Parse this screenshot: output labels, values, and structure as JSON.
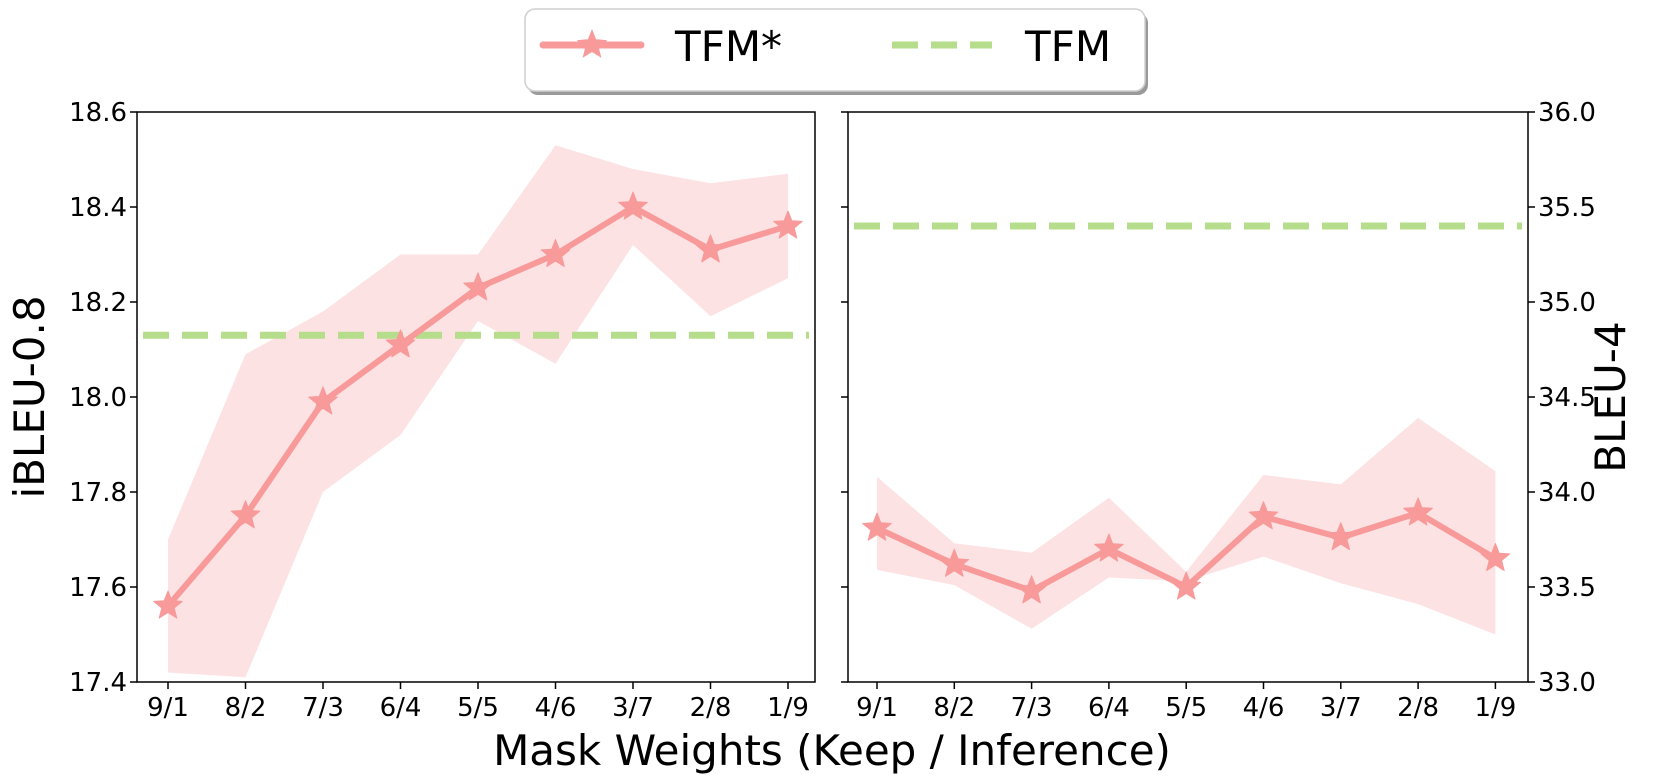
{
  "chart_data": [
    {
      "type": "line",
      "panel": "left",
      "categories": [
        "9/1",
        "8/2",
        "7/3",
        "6/4",
        "5/5",
        "4/6",
        "3/7",
        "2/8",
        "1/9"
      ],
      "ylabel": "iBLEU-0.8",
      "ylim": [
        17.4,
        18.6
      ],
      "yticks": [
        "17.4",
        "17.6",
        "17.8",
        "18.0",
        "18.2",
        "18.4",
        "18.6"
      ],
      "series": [
        {
          "name": "TFM*",
          "values": [
            17.56,
            17.75,
            17.99,
            18.11,
            18.23,
            18.3,
            18.4,
            18.31,
            18.36
          ],
          "upper": [
            17.7,
            18.09,
            18.18,
            18.3,
            18.3,
            18.53,
            18.48,
            18.45,
            18.47
          ],
          "lower": [
            17.42,
            17.41,
            17.8,
            17.92,
            18.16,
            18.07,
            18.32,
            18.17,
            18.25
          ]
        },
        {
          "name": "TFM",
          "baseline": 18.13
        }
      ]
    },
    {
      "type": "line",
      "panel": "right",
      "categories": [
        "9/1",
        "8/2",
        "7/3",
        "6/4",
        "5/5",
        "4/6",
        "3/7",
        "2/8",
        "1/9"
      ],
      "ylabel": "BLEU-4",
      "ylim": [
        33.0,
        36.0
      ],
      "yticks": [
        "33.0",
        "33.5",
        "34.0",
        "34.5",
        "35.0",
        "35.5",
        "36.0"
      ],
      "series": [
        {
          "name": "TFM*",
          "values": [
            33.81,
            33.62,
            33.48,
            33.7,
            33.5,
            33.87,
            33.76,
            33.89,
            33.65
          ],
          "upper": [
            34.08,
            33.73,
            33.68,
            33.97,
            33.58,
            34.09,
            34.04,
            34.39,
            34.11
          ],
          "lower": [
            33.59,
            33.51,
            33.28,
            33.55,
            33.53,
            33.66,
            33.52,
            33.41,
            33.25
          ]
        },
        {
          "name": "TFM",
          "baseline": 35.4
        }
      ]
    }
  ],
  "xlabel": "Mask Weights (Keep / Inference)",
  "legend": {
    "placement": "top-center",
    "entries": [
      "TFM*",
      "TFM"
    ]
  },
  "colors": {
    "tfm_star": "#f89a9a",
    "tfm_band": "#fde2e4",
    "tfm_baseline": "#b5dd8c"
  }
}
